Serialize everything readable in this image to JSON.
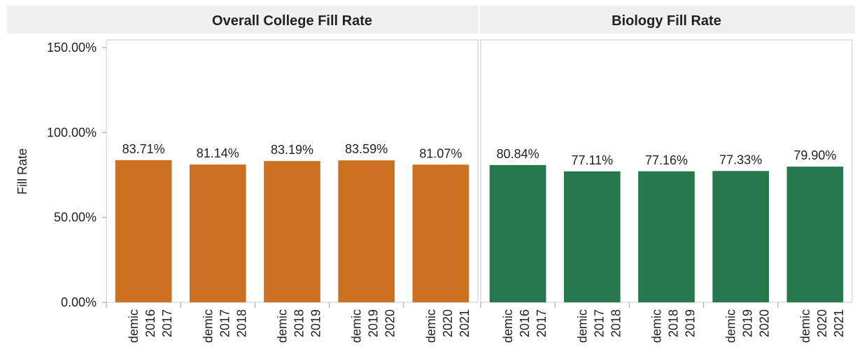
{
  "chart_data": [
    {
      "type": "bar",
      "title": "Overall College Fill Rate",
      "ylabel": "Fill Rate",
      "categories": [
        "demic 2016 2017",
        "demic 2017 2018",
        "demic 2018 2019",
        "demic 2019 2020",
        "demic 2020 2021"
      ],
      "values": [
        83.71,
        81.14,
        83.19,
        83.59,
        81.07
      ],
      "value_labels": [
        "83.71%",
        "81.14%",
        "83.19%",
        "83.59%",
        "81.07%"
      ],
      "color": "#cc711f",
      "ylim": [
        0,
        150
      ],
      "yticks": [
        {
          "value": 0,
          "label": "0.00%"
        },
        {
          "value": 50,
          "label": "50.00%"
        },
        {
          "value": 100,
          "label": "100.00%"
        },
        {
          "value": 150,
          "label": "150.00%"
        }
      ]
    },
    {
      "type": "bar",
      "title": "Biology Fill Rate",
      "categories": [
        "demic 2016 2017",
        "demic 2017 2018",
        "demic 2018 2019",
        "demic 2019 2020",
        "demic 2020 2021"
      ],
      "values": [
        80.84,
        77.11,
        77.16,
        77.33,
        79.9
      ],
      "value_labels": [
        "80.84%",
        "77.11%",
        "77.16%",
        "77.33%",
        "79.90%"
      ],
      "color": "#26784c",
      "ylim": [
        0,
        150
      ]
    }
  ]
}
